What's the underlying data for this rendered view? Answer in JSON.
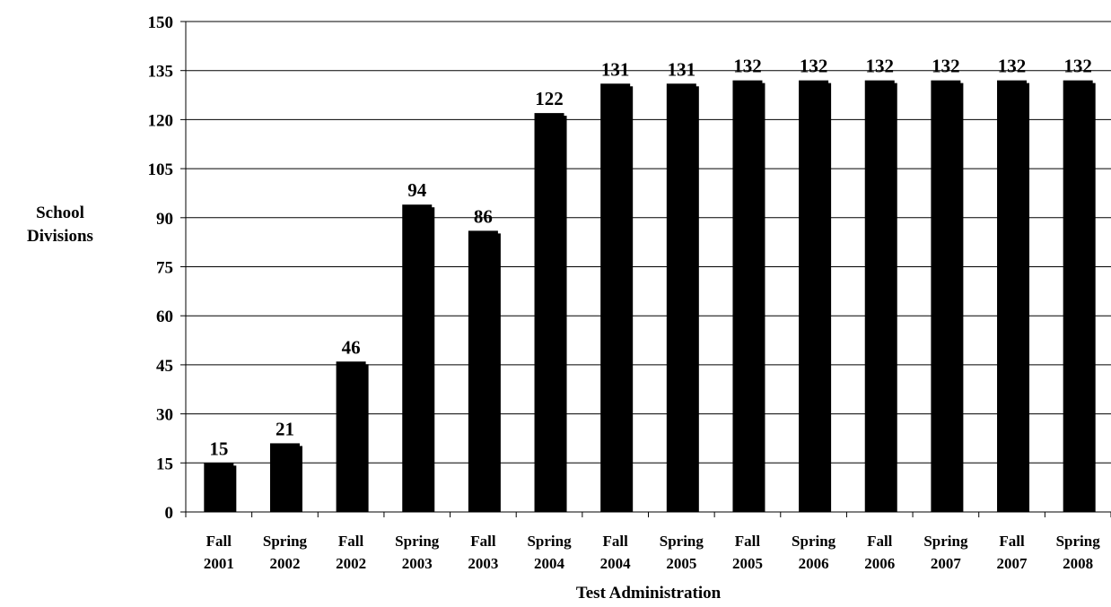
{
  "chart_data": {
    "type": "bar",
    "title": "",
    "xlabel": "Test Administration",
    "ylabel_lines": [
      "School",
      "Divisions"
    ],
    "categories": [
      [
        "Fall",
        "2001"
      ],
      [
        "Spring",
        "2002"
      ],
      [
        "Fall",
        "2002"
      ],
      [
        "Spring",
        "2003"
      ],
      [
        "Fall",
        "2003"
      ],
      [
        "Spring",
        "2004"
      ],
      [
        "Fall",
        "2004"
      ],
      [
        "Spring",
        "2005"
      ],
      [
        "Fall",
        "2005"
      ],
      [
        "Spring",
        "2006"
      ],
      [
        "Fall",
        "2006"
      ],
      [
        "Spring",
        "2007"
      ],
      [
        "Fall",
        "2007"
      ],
      [
        "Spring",
        "2008"
      ]
    ],
    "values": [
      15,
      21,
      46,
      94,
      86,
      122,
      131,
      131,
      132,
      132,
      132,
      132,
      132,
      132
    ],
    "data_labels": [
      "15",
      "21",
      "46",
      "94",
      "86",
      "122",
      "131",
      "131",
      "132",
      "132",
      "132",
      "132",
      "132",
      "132"
    ],
    "ylim": [
      0,
      150
    ],
    "yticks": [
      0,
      15,
      30,
      45,
      60,
      75,
      90,
      105,
      120,
      135,
      150
    ],
    "grid": true,
    "legend": "none",
    "bar_color": "#000000"
  }
}
